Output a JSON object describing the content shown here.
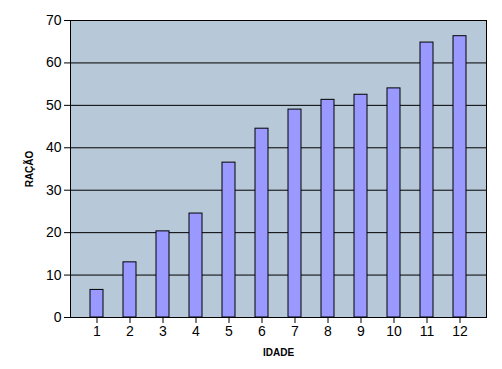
{
  "chart_data": {
    "type": "bar",
    "x_label": "IDADE",
    "y_label": "RAÇÃO",
    "categories": [
      "1",
      "2",
      "3",
      "4",
      "5",
      "6",
      "7",
      "8",
      "9",
      "10",
      "11",
      "12"
    ],
    "values": [
      6.5,
      13,
      20.3,
      24.5,
      36.5,
      44.5,
      49,
      51.3,
      52.5,
      54,
      64.8,
      66.3
    ],
    "color": "#9999ff",
    "ylim": [
      0,
      70
    ],
    "yticks": [
      0,
      10,
      20,
      30,
      40,
      50,
      60,
      70
    ],
    "grid": true
  }
}
